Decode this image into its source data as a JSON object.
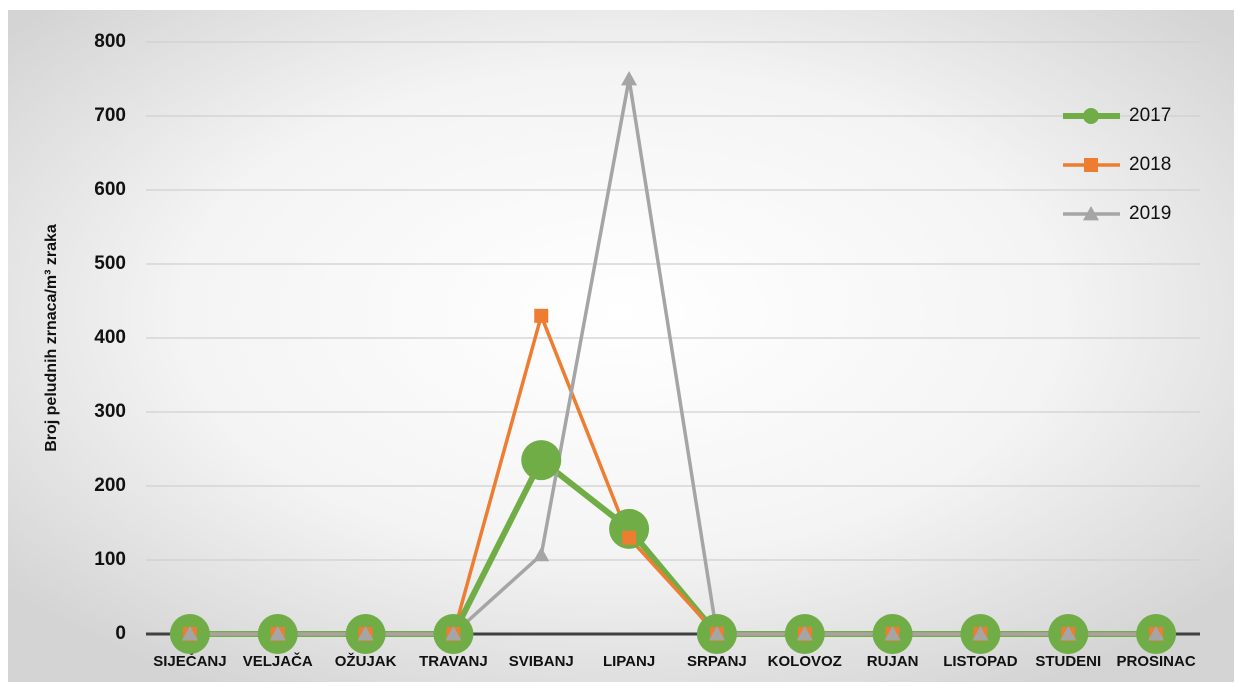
{
  "chart_data": {
    "type": "line",
    "y_label": "Broj peludnih zrnaca/m³ zraka",
    "categories": [
      "SIJEČANJ",
      "VELJAČA",
      "OŽUJAK",
      "TRAVANJ",
      "SVIBANJ",
      "LIPANJ",
      "SRPANJ",
      "KOLOVOZ",
      "RUJAN",
      "LISTOPAD",
      "STUDENI",
      "PROSINAC"
    ],
    "series": [
      {
        "name": "2017",
        "color": "#70ad47",
        "marker": "circle",
        "values": [
          0,
          0,
          0,
          0,
          235,
          142,
          0,
          0,
          0,
          0,
          0,
          0
        ]
      },
      {
        "name": "2018",
        "color": "#ed7d31",
        "marker": "square",
        "values": [
          0,
          0,
          0,
          0,
          430,
          130,
          0,
          0,
          0,
          0,
          0,
          0
        ]
      },
      {
        "name": "2019",
        "color": "#a5a5a5",
        "marker": "triangle",
        "values": [
          0,
          0,
          0,
          0,
          107,
          750,
          0,
          0,
          0,
          0,
          0,
          0
        ]
      }
    ],
    "ylim": [
      0,
      800
    ],
    "yticks": [
      0,
      100,
      200,
      300,
      400,
      500,
      600,
      700,
      800
    ],
    "grid": true,
    "legend": "right"
  }
}
